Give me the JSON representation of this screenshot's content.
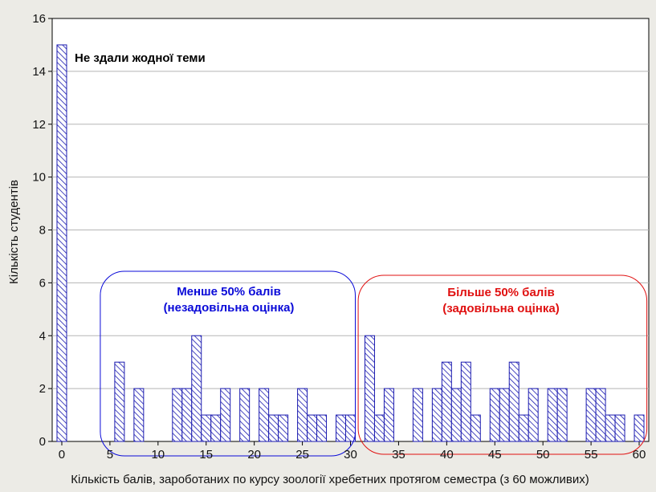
{
  "chart_data": {
    "type": "bar",
    "xlabel": "Кількість балів, зароботаних по курсу зоології хребетних протягом семестра (з 60 можливих)",
    "ylabel": "Кількість студентів",
    "xlim": [
      -1,
      61
    ],
    "ylim": [
      0,
      16
    ],
    "x_ticks": [
      0,
      5,
      10,
      15,
      20,
      25,
      30,
      35,
      40,
      45,
      50,
      55,
      60
    ],
    "y_ticks": [
      0,
      2,
      4,
      6,
      8,
      10,
      12,
      14,
      16
    ],
    "grid": "horizontal",
    "x": [
      0,
      6,
      8,
      12,
      13,
      14,
      15,
      16,
      17,
      19,
      21,
      22,
      23,
      25,
      26,
      27,
      29,
      30,
      32,
      33,
      34,
      37,
      39,
      40,
      41,
      42,
      43,
      45,
      46,
      47,
      48,
      49,
      51,
      52,
      55,
      56,
      57,
      58,
      60
    ],
    "values": [
      15,
      3,
      2,
      2,
      2,
      4,
      1,
      1,
      2,
      2,
      2,
      1,
      1,
      2,
      1,
      1,
      1,
      1,
      4,
      1,
      2,
      2,
      2,
      3,
      2,
      3,
      1,
      2,
      2,
      3,
      1,
      2,
      2,
      2,
      2,
      2,
      1,
      1,
      1
    ],
    "bar_color": "#1a1ab0",
    "annotations": [
      {
        "text": "Не здали жодної теми",
        "color": "#000000"
      },
      {
        "text": "Менше 50% балів",
        "text2": "(незадовільна оцінка)",
        "color": "#0a0ad8",
        "range": [
          4,
          30.5
        ]
      },
      {
        "text": "Більше 50% балів",
        "text2": "(задовільна оцінка)",
        "color": "#e01010",
        "range": [
          30.8,
          60.8
        ]
      }
    ]
  }
}
